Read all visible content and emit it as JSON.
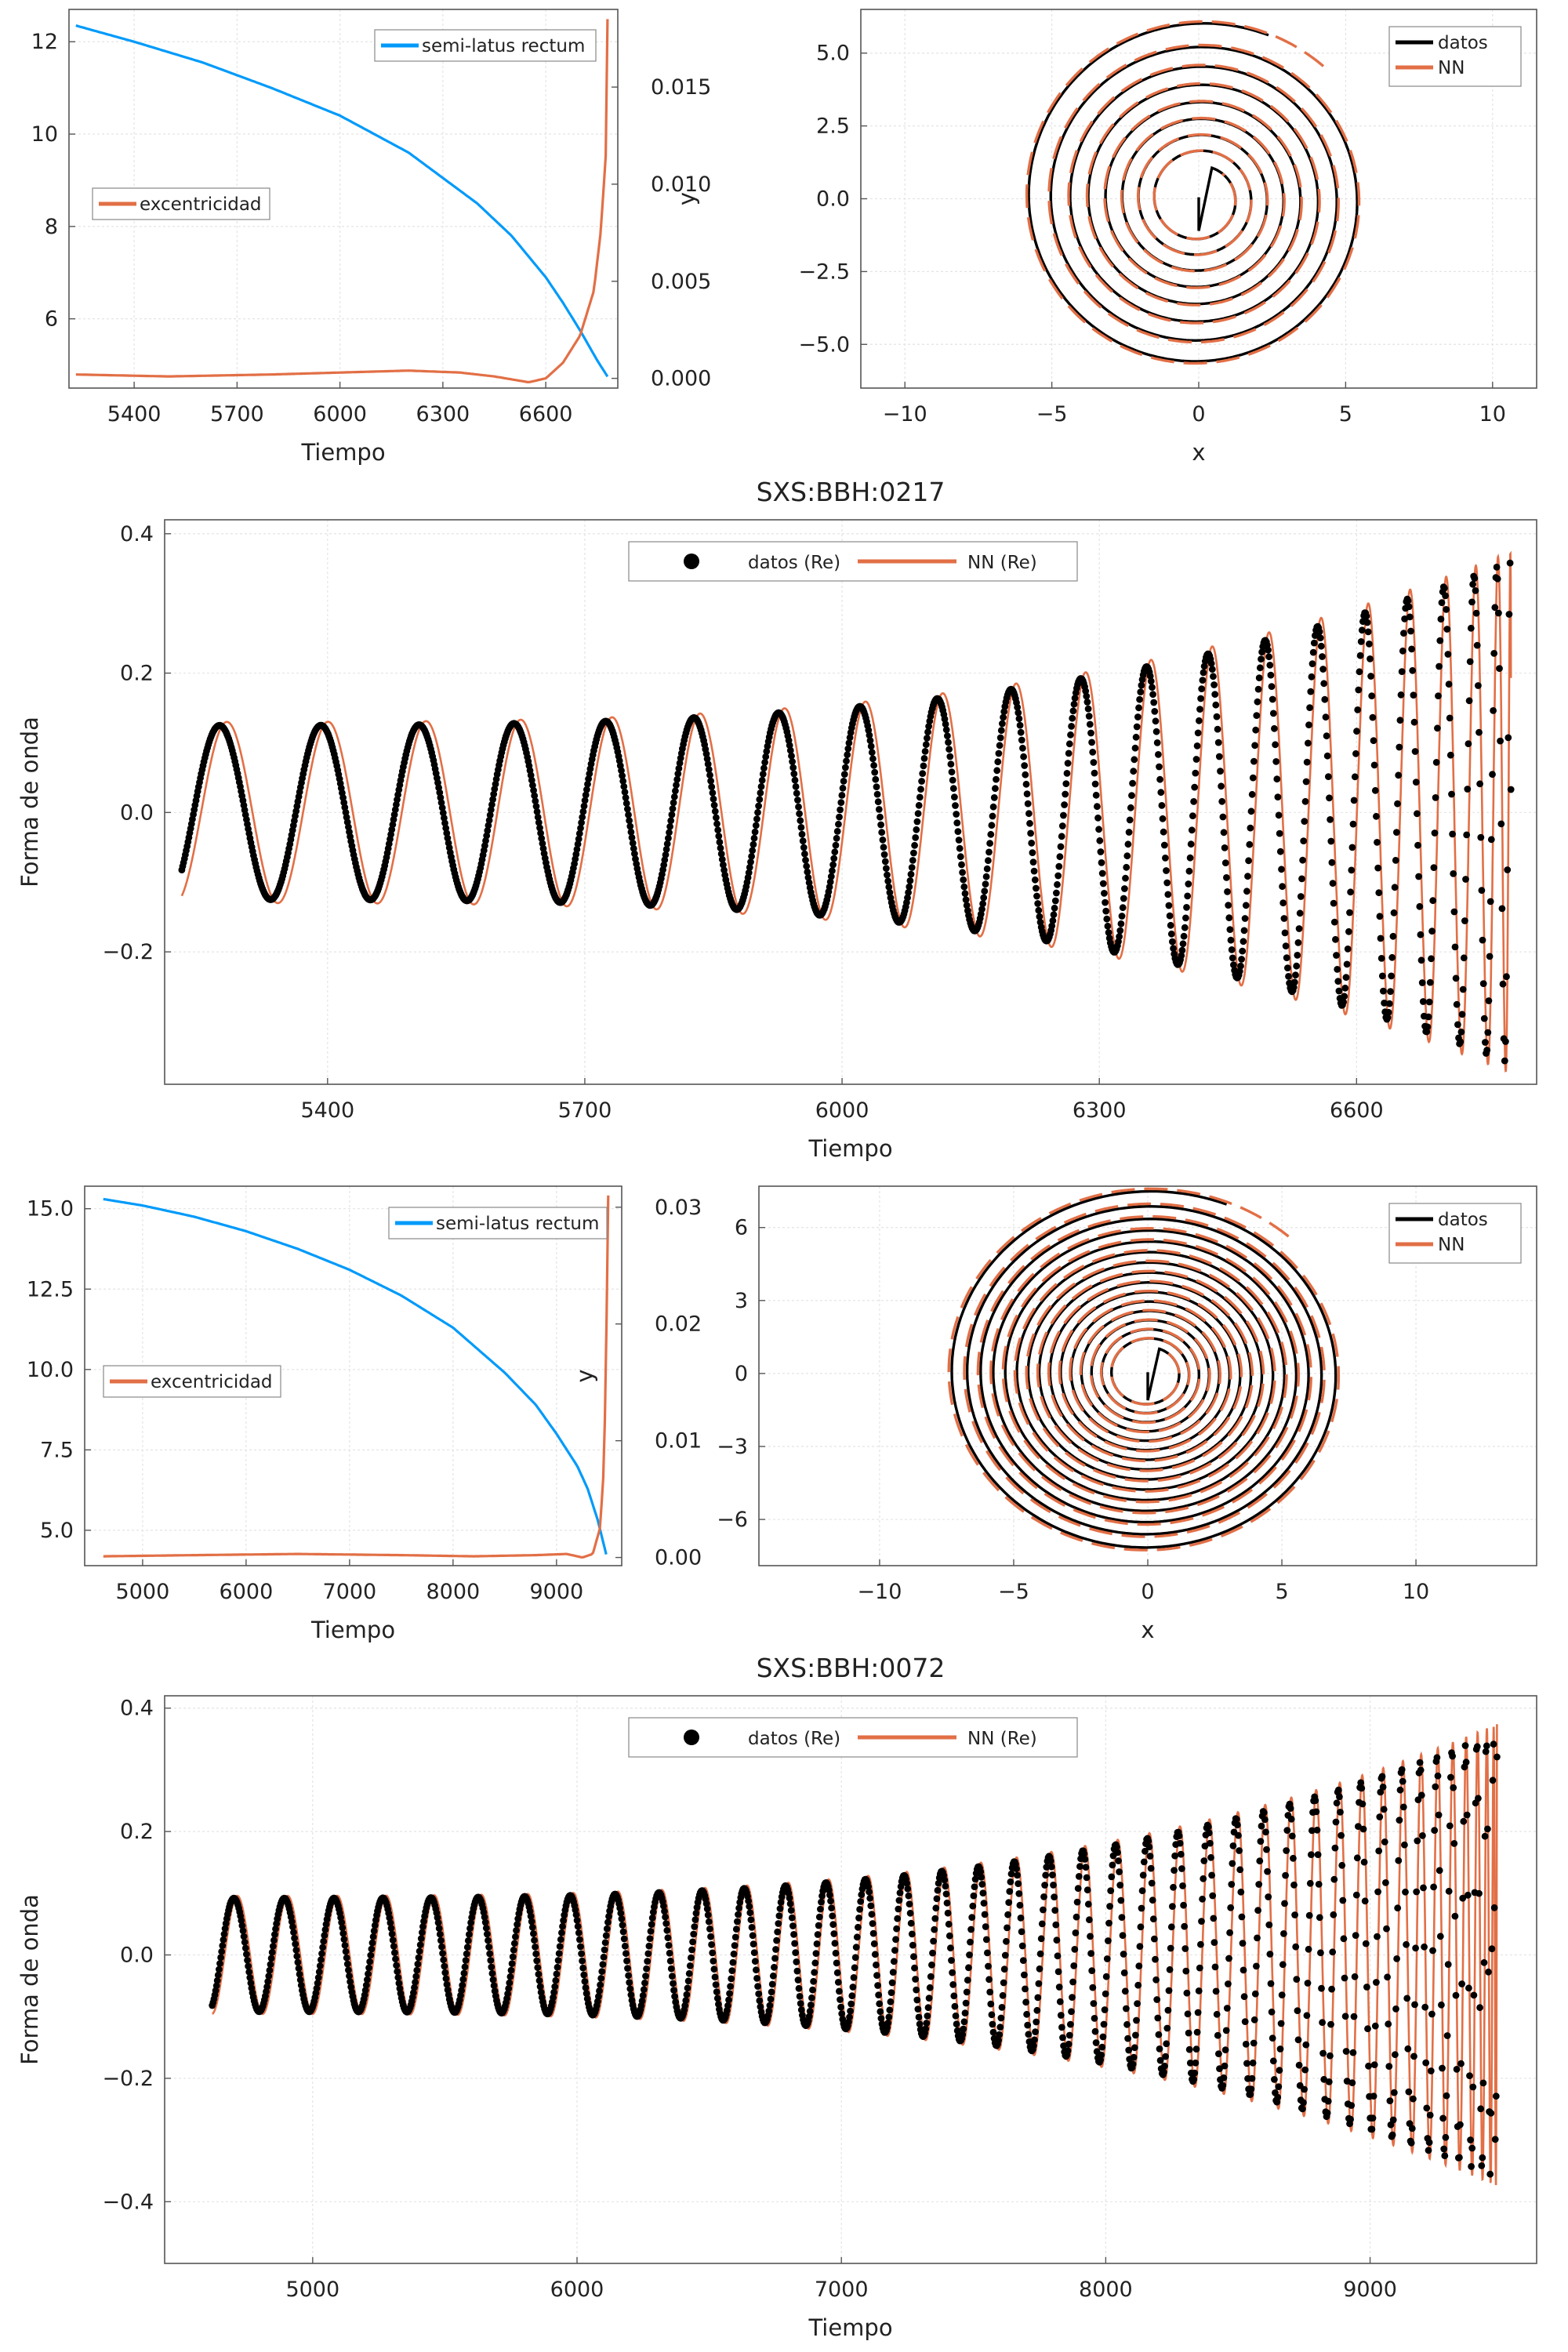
{
  "colors": {
    "blue": "#009AFA",
    "orange": "#E26F46",
    "black": "#000000",
    "grid": "#e4e4e4",
    "frame": "#555555"
  },
  "chart_data": [
    {
      "id": "orbit-params-0217",
      "type": "line",
      "title": "",
      "xlabel": "Tiempo",
      "ylabel_left": "",
      "ylabel_right": "",
      "xlim": [
        5210,
        6810
      ],
      "xticks": [
        "5400",
        "5700",
        "6000",
        "6300",
        "6600"
      ],
      "ylim_left": [
        4.5,
        12.7
      ],
      "yticks_left": [
        "6",
        "8",
        "10",
        "12"
      ],
      "ylim_right": [
        -0.0005,
        0.019
      ],
      "yticks_right": [
        "0.000",
        "0.005",
        "0.010",
        "0.015"
      ],
      "grid": true,
      "series": [
        {
          "name": "semi-latus rectum",
          "axis": "left",
          "color": "#009AFA",
          "x": [
            5230,
            5400,
            5600,
            5800,
            6000,
            6200,
            6400,
            6500,
            6600,
            6650,
            6700,
            6750,
            6780
          ],
          "y": [
            12.35,
            12.0,
            11.55,
            11.0,
            10.4,
            9.6,
            8.5,
            7.8,
            6.9,
            6.35,
            5.75,
            5.1,
            4.75
          ]
        },
        {
          "name": "excentricidad",
          "axis": "right",
          "color": "#E26F46",
          "x": [
            5230,
            5500,
            5800,
            6000,
            6200,
            6350,
            6450,
            6550,
            6600,
            6650,
            6700,
            6740,
            6760,
            6775,
            6780
          ],
          "y": [
            0.0002,
            0.0001,
            0.0002,
            0.0003,
            0.0004,
            0.0003,
            0.0001,
            -0.0002,
            0.0,
            0.0008,
            0.0022,
            0.0045,
            0.0075,
            0.0115,
            0.0185
          ]
        }
      ],
      "legend": [
        {
          "label": "semi-latus rectum",
          "placement": "top-right"
        },
        {
          "label": "excentricidad",
          "placement": "left"
        }
      ]
    },
    {
      "id": "orbit-xy-0217",
      "type": "line",
      "title": "",
      "xlabel": "x",
      "ylabel": "y",
      "xlim": [
        -11.5,
        11.5
      ],
      "xticks": [
        "−10",
        "−5",
        "0",
        "5",
        "10"
      ],
      "ylim": [
        -6.5,
        6.5
      ],
      "yticks": [
        "5.0",
        "2.5",
        "0.0",
        "−2.5",
        "−5.0"
      ],
      "grid": true,
      "spiral": {
        "r_outer": 6.1,
        "r_inner": 1.15,
        "turns": 8
      },
      "series": [
        {
          "name": "datos",
          "color": "#000000",
          "style": "solid"
        },
        {
          "name": "NN",
          "color": "#E26F46",
          "style": "dashed"
        }
      ],
      "legend_placement": "top-right"
    },
    {
      "id": "waveform-0217",
      "type": "scatter",
      "title": "SXS:BBH:0217",
      "xlabel": "Tiempo",
      "ylabel": "Forma de onda",
      "xlim": [
        5210,
        6810
      ],
      "xticks": [
        "5400",
        "5700",
        "6000",
        "6300",
        "6600"
      ],
      "ylim": [
        -0.39,
        0.42
      ],
      "yticks": [
        "0.4",
        "0.2",
        "0.0",
        "−0.2"
      ],
      "grid": true,
      "wave": {
        "t_start": 5230,
        "t_merge": 6780,
        "amp_start": 0.125,
        "amp_end": 0.36,
        "cycles": 20.6,
        "phase": -0.72,
        "nn_offset": 0.45
      },
      "series": [
        {
          "name": "datos (Re)",
          "color": "#000000",
          "kind": "points"
        },
        {
          "name": "NN (Re)",
          "color": "#E26F46",
          "kind": "line"
        }
      ],
      "legend_placement": "top-center"
    },
    {
      "id": "orbit-params-0072",
      "type": "line",
      "title": "",
      "xlabel": "Tiempo",
      "ylabel_left": "",
      "ylabel_right": "",
      "xlim": [
        4440,
        9630
      ],
      "xticks": [
        "5000",
        "6000",
        "7000",
        "8000",
        "9000"
      ],
      "ylim_left": [
        3.9,
        15.7
      ],
      "yticks_left": [
        "5.0",
        "7.5",
        "10.0",
        "12.5",
        "15.0"
      ],
      "ylim_right": [
        -0.0007,
        0.0318
      ],
      "yticks_right": [
        "0.00",
        "0.01",
        "0.02",
        "0.03"
      ],
      "grid": true,
      "series": [
        {
          "name": "semi-latus rectum",
          "axis": "left",
          "color": "#009AFA",
          "x": [
            4620,
            5000,
            5500,
            6000,
            6500,
            7000,
            7500,
            8000,
            8500,
            8800,
            9000,
            9200,
            9300,
            9400,
            9480
          ],
          "y": [
            15.3,
            15.1,
            14.75,
            14.3,
            13.75,
            13.1,
            12.3,
            11.3,
            9.9,
            8.9,
            8.0,
            7.0,
            6.3,
            5.3,
            4.25
          ]
        },
        {
          "name": "excentricidad",
          "axis": "right",
          "color": "#E26F46",
          "x": [
            4620,
            5500,
            6500,
            7500,
            8200,
            8800,
            9100,
            9250,
            9350,
            9420,
            9460,
            9480,
            9500
          ],
          "y": [
            0.0001,
            0.0002,
            0.0003,
            0.0002,
            0.0001,
            0.0002,
            0.0003,
            0.0,
            0.0003,
            0.0025,
            0.008,
            0.018,
            0.031
          ]
        }
      ],
      "legend": [
        {
          "label": "semi-latus rectum",
          "placement": "top-right"
        },
        {
          "label": "excentricidad",
          "placement": "left"
        }
      ]
    },
    {
      "id": "orbit-xy-0072",
      "type": "line",
      "title": "",
      "xlabel": "x",
      "ylabel": "y",
      "xlim": [
        -14.5,
        14.5
      ],
      "xticks": [
        "−10",
        "−5",
        "0",
        "5",
        "10"
      ],
      "ylim": [
        -7.9,
        7.7
      ],
      "yticks": [
        "6",
        "3",
        "0",
        "−3",
        "−6"
      ],
      "grid": true,
      "spiral": {
        "r_outer": 7.55,
        "r_inner": 1.1,
        "turns": 15
      },
      "series": [
        {
          "name": "datos",
          "color": "#000000",
          "style": "solid"
        },
        {
          "name": "NN",
          "color": "#E26F46",
          "style": "dashed"
        }
      ],
      "legend_placement": "top-right"
    },
    {
      "id": "waveform-0072",
      "type": "scatter",
      "title": "SXS:BBH:0072",
      "xlabel": "Tiempo",
      "ylabel": "Forma de onda",
      "xlim": [
        4440,
        9630
      ],
      "xticks": [
        "5000",
        "6000",
        "7000",
        "8000",
        "9000"
      ],
      "ylim": [
        -0.5,
        0.42
      ],
      "yticks": [
        "0.4",
        "0.2",
        "0.0",
        "−0.2",
        "−0.4"
      ],
      "grid": true,
      "wave": {
        "t_start": 4620,
        "t_merge": 9480,
        "amp_start": 0.092,
        "amp_end": 0.36,
        "cycles": 40.5,
        "phase": -1.1,
        "nn_offset": 0.42
      },
      "series": [
        {
          "name": "datos (Re)",
          "color": "#000000",
          "kind": "points"
        },
        {
          "name": "NN (Re)",
          "color": "#E26F46",
          "kind": "line"
        }
      ],
      "legend_placement": "top-center"
    }
  ]
}
